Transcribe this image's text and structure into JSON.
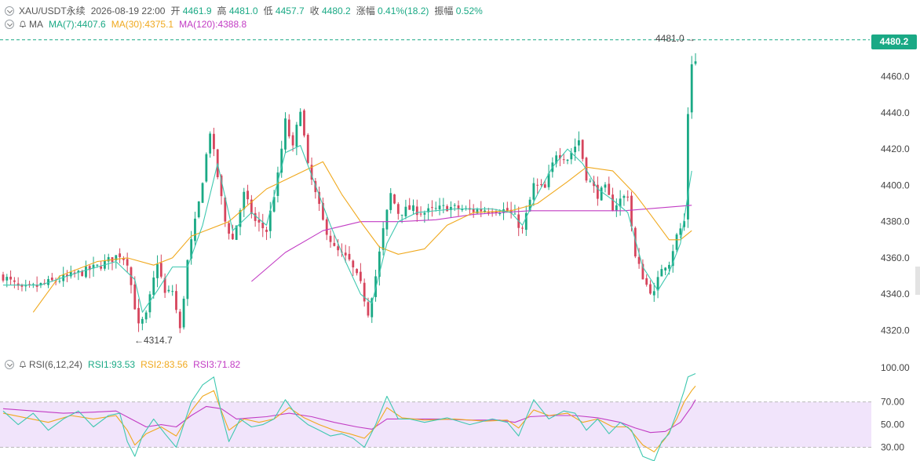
{
  "header": {
    "symbol": "XAU/USDT永续",
    "datetime": "2026-08-19 22:00",
    "open_label": "开",
    "open": "4461.9",
    "high_label": "高",
    "high": "4481.0",
    "low_label": "低",
    "low": "4457.7",
    "close_label": "收",
    "close": "4480.2",
    "change_label": "涨幅",
    "change": "0.41%(18.2)",
    "amp_label": "振幅",
    "amp": "0.52%"
  },
  "ma_legend": {
    "label": "MA",
    "ma7": "MA(7):4407.6",
    "ma30": "MA(30):4375.1",
    "ma120": "MA(120):4388.8"
  },
  "rsi_legend": {
    "label": "RSI(6,12,24)",
    "rsi1": "RSI1:93.53",
    "rsi2": "RSI2:83.56",
    "rsi3": "RSI3:71.82"
  },
  "colors": {
    "up": "#1aa985",
    "down": "#d6455d",
    "ma7": "#3fc8b0",
    "ma30": "#f0a91e",
    "ma120": "#c23cc4",
    "rsi1": "#3fc8b0",
    "rsi2": "#f0a91e",
    "rsi3": "#c23cc4",
    "rsi_band": "#f1e4fb"
  },
  "chart_data": [
    {
      "type": "candlestick",
      "ylim": [
        4312,
        4484
      ],
      "y_ticks": [
        "4480.2",
        "4460.0",
        "4440.0",
        "4420.0",
        "4400.0",
        "4380.0",
        "4360.0",
        "4340.0",
        "4320.0"
      ],
      "y_tick_values": [
        4480.2,
        4460,
        4440,
        4420,
        4400,
        4380,
        4360,
        4340,
        4320
      ],
      "last_price": "4480.2",
      "last_price_value": 4480.2,
      "high_annotation": "4481.0",
      "high_annotation_value": 4481.0,
      "low_annotation": "4314.7",
      "low_annotation_value": 4314.7,
      "anchors": [
        [
          0,
          4350
        ],
        [
          5,
          4342
        ],
        [
          10,
          4345
        ],
        [
          18,
          4350
        ],
        [
          25,
          4355
        ],
        [
          31,
          4362
        ],
        [
          33,
          4358
        ],
        [
          34,
          4345
        ],
        [
          36,
          4322
        ],
        [
          38,
          4328
        ],
        [
          41,
          4358
        ],
        [
          43,
          4340
        ],
        [
          45,
          4342
        ],
        [
          47,
          4320
        ],
        [
          49,
          4358
        ],
        [
          52,
          4390
        ],
        [
          55,
          4430
        ],
        [
          57,
          4405
        ],
        [
          59,
          4380
        ],
        [
          61,
          4370
        ],
        [
          64,
          4395
        ],
        [
          67,
          4380
        ],
        [
          70,
          4375
        ],
        [
          73,
          4405
        ],
        [
          75,
          4435
        ],
        [
          77,
          4420
        ],
        [
          79,
          4443
        ],
        [
          81,
          4410
        ],
        [
          83,
          4395
        ],
        [
          85,
          4380
        ],
        [
          88,
          4365
        ],
        [
          92,
          4358
        ],
        [
          95,
          4345
        ],
        [
          97,
          4330
        ],
        [
          99,
          4350
        ],
        [
          101,
          4375
        ],
        [
          103,
          4395
        ],
        [
          105,
          4385
        ],
        [
          108,
          4387
        ],
        [
          112,
          4385
        ],
        [
          118,
          4388
        ],
        [
          124,
          4386
        ],
        [
          130,
          4387
        ],
        [
          134,
          4386
        ],
        [
          136,
          4382
        ],
        [
          138,
          4375
        ],
        [
          141,
          4400
        ],
        [
          144,
          4398
        ],
        [
          147,
          4418
        ],
        [
          150,
          4415
        ],
        [
          153,
          4425
        ],
        [
          155,
          4405
        ],
        [
          158,
          4395
        ],
        [
          160,
          4398
        ],
        [
          162,
          4388
        ],
        [
          164,
          4392
        ],
        [
          166,
          4395
        ],
        [
          168,
          4360
        ],
        [
          171,
          4345
        ],
        [
          173,
          4340
        ],
        [
          175,
          4355
        ],
        [
          177,
          4358
        ],
        [
          179,
          4372
        ],
        [
          181,
          4380
        ],
        [
          182,
          4440
        ],
        [
          183,
          4468
        ]
      ],
      "ma7_anchors": [
        [
          0,
          4345
        ],
        [
          10,
          4345
        ],
        [
          20,
          4352
        ],
        [
          30,
          4358
        ],
        [
          35,
          4348
        ],
        [
          37,
          4330
        ],
        [
          41,
          4342
        ],
        [
          45,
          4355
        ],
        [
          49,
          4355
        ],
        [
          53,
          4378
        ],
        [
          57,
          4412
        ],
        [
          61,
          4375
        ],
        [
          66,
          4385
        ],
        [
          70,
          4378
        ],
        [
          75,
          4418
        ],
        [
          79,
          4422
        ],
        [
          83,
          4400
        ],
        [
          87,
          4378
        ],
        [
          91,
          4358
        ],
        [
          95,
          4340
        ],
        [
          98,
          4335
        ],
        [
          102,
          4368
        ],
        [
          105,
          4380
        ],
        [
          110,
          4385
        ],
        [
          120,
          4387
        ],
        [
          130,
          4387
        ],
        [
          135,
          4385
        ],
        [
          138,
          4378
        ],
        [
          142,
          4395
        ],
        [
          146,
          4410
        ],
        [
          150,
          4420
        ],
        [
          154,
          4412
        ],
        [
          158,
          4398
        ],
        [
          162,
          4392
        ],
        [
          166,
          4385
        ],
        [
          170,
          4355
        ],
        [
          174,
          4342
        ],
        [
          177,
          4352
        ],
        [
          180,
          4368
        ],
        [
          182,
          4395
        ],
        [
          183,
          4408
        ]
      ],
      "ma30_anchors": [
        [
          8,
          4330
        ],
        [
          15,
          4350
        ],
        [
          25,
          4358
        ],
        [
          33,
          4360
        ],
        [
          40,
          4356
        ],
        [
          45,
          4360
        ],
        [
          50,
          4372
        ],
        [
          60,
          4380
        ],
        [
          70,
          4398
        ],
        [
          80,
          4408
        ],
        [
          85,
          4413
        ],
        [
          90,
          4395
        ],
        [
          95,
          4380
        ],
        [
          100,
          4366
        ],
        [
          105,
          4362
        ],
        [
          112,
          4365
        ],
        [
          118,
          4378
        ],
        [
          125,
          4385
        ],
        [
          135,
          4386
        ],
        [
          142,
          4390
        ],
        [
          150,
          4402
        ],
        [
          155,
          4410
        ],
        [
          162,
          4408
        ],
        [
          168,
          4395
        ],
        [
          172,
          4384
        ],
        [
          177,
          4370
        ],
        [
          180,
          4370
        ],
        [
          183,
          4375
        ]
      ],
      "ma120_anchors": [
        [
          66,
          4347
        ],
        [
          75,
          4363
        ],
        [
          85,
          4375
        ],
        [
          95,
          4380
        ],
        [
          105,
          4380
        ],
        [
          115,
          4381
        ],
        [
          125,
          4384
        ],
        [
          140,
          4386
        ],
        [
          150,
          4386
        ],
        [
          165,
          4386
        ],
        [
          183,
          4389
        ]
      ]
    },
    {
      "type": "line",
      "ylim": [
        20,
        105
      ],
      "y_ticks": [
        "100.00",
        "70.00",
        "50.00",
        "30.00"
      ],
      "y_tick_values": [
        100,
        70,
        50,
        30
      ],
      "band": [
        30,
        70
      ],
      "rsi1_anchors": [
        [
          0,
          62
        ],
        [
          4,
          50
        ],
        [
          8,
          60
        ],
        [
          12,
          45
        ],
        [
          16,
          55
        ],
        [
          20,
          62
        ],
        [
          24,
          48
        ],
        [
          28,
          58
        ],
        [
          31,
          60
        ],
        [
          33,
          35
        ],
        [
          35,
          22
        ],
        [
          37,
          40
        ],
        [
          40,
          55
        ],
        [
          43,
          42
        ],
        [
          46,
          30
        ],
        [
          50,
          70
        ],
        [
          53,
          85
        ],
        [
          56,
          92
        ],
        [
          58,
          60
        ],
        [
          60,
          35
        ],
        [
          63,
          55
        ],
        [
          66,
          48
        ],
        [
          69,
          50
        ],
        [
          72,
          55
        ],
        [
          75,
          72
        ],
        [
          78,
          58
        ],
        [
          81,
          50
        ],
        [
          84,
          45
        ],
        [
          87,
          40
        ],
        [
          90,
          42
        ],
        [
          93,
          38
        ],
        [
          96,
          30
        ],
        [
          99,
          50
        ],
        [
          102,
          75
        ],
        [
          105,
          55
        ],
        [
          108,
          55
        ],
        [
          112,
          52
        ],
        [
          118,
          56
        ],
        [
          124,
          50
        ],
        [
          130,
          55
        ],
        [
          134,
          52
        ],
        [
          137,
          40
        ],
        [
          141,
          72
        ],
        [
          145,
          55
        ],
        [
          149,
          62
        ],
        [
          152,
          60
        ],
        [
          155,
          45
        ],
        [
          158,
          55
        ],
        [
          161,
          42
        ],
        [
          164,
          52
        ],
        [
          167,
          45
        ],
        [
          170,
          22
        ],
        [
          173,
          18
        ],
        [
          175,
          35
        ],
        [
          177,
          42
        ],
        [
          179,
          60
        ],
        [
          181,
          80
        ],
        [
          182,
          92
        ],
        [
          184,
          95
        ]
      ],
      "rsi2_anchors": [
        [
          0,
          60
        ],
        [
          6,
          56
        ],
        [
          12,
          52
        ],
        [
          18,
          58
        ],
        [
          24,
          55
        ],
        [
          30,
          58
        ],
        [
          33,
          45
        ],
        [
          35,
          32
        ],
        [
          38,
          42
        ],
        [
          42,
          48
        ],
        [
          46,
          40
        ],
        [
          50,
          62
        ],
        [
          53,
          75
        ],
        [
          56,
          80
        ],
        [
          58,
          62
        ],
        [
          60,
          45
        ],
        [
          64,
          55
        ],
        [
          68,
          52
        ],
        [
          72,
          55
        ],
        [
          76,
          65
        ],
        [
          80,
          56
        ],
        [
          84,
          50
        ],
        [
          88,
          45
        ],
        [
          92,
          42
        ],
        [
          96,
          38
        ],
        [
          99,
          48
        ],
        [
          102,
          65
        ],
        [
          106,
          56
        ],
        [
          112,
          54
        ],
        [
          120,
          55
        ],
        [
          128,
          53
        ],
        [
          134,
          54
        ],
        [
          137,
          47
        ],
        [
          141,
          63
        ],
        [
          145,
          58
        ],
        [
          150,
          60
        ],
        [
          154,
          52
        ],
        [
          158,
          55
        ],
        [
          162,
          48
        ],
        [
          166,
          48
        ],
        [
          170,
          32
        ],
        [
          173,
          26
        ],
        [
          176,
          38
        ],
        [
          179,
          55
        ],
        [
          181,
          70
        ],
        [
          183,
          80
        ],
        [
          184,
          84
        ]
      ],
      "rsi3_anchors": [
        [
          0,
          64
        ],
        [
          8,
          62
        ],
        [
          16,
          60
        ],
        [
          24,
          61
        ],
        [
          30,
          62
        ],
        [
          34,
          55
        ],
        [
          38,
          48
        ],
        [
          42,
          50
        ],
        [
          46,
          48
        ],
        [
          50,
          58
        ],
        [
          54,
          66
        ],
        [
          58,
          64
        ],
        [
          62,
          55
        ],
        [
          66,
          56
        ],
        [
          70,
          57
        ],
        [
          76,
          60
        ],
        [
          82,
          57
        ],
        [
          88,
          52
        ],
        [
          94,
          48
        ],
        [
          98,
          46
        ],
        [
          102,
          55
        ],
        [
          108,
          55
        ],
        [
          116,
          55
        ],
        [
          124,
          54
        ],
        [
          132,
          54
        ],
        [
          136,
          52
        ],
        [
          140,
          57
        ],
        [
          146,
          58
        ],
        [
          152,
          58
        ],
        [
          158,
          56
        ],
        [
          164,
          52
        ],
        [
          168,
          47
        ],
        [
          172,
          43
        ],
        [
          176,
          44
        ],
        [
          180,
          52
        ],
        [
          183,
          66
        ],
        [
          184,
          72
        ]
      ]
    }
  ]
}
